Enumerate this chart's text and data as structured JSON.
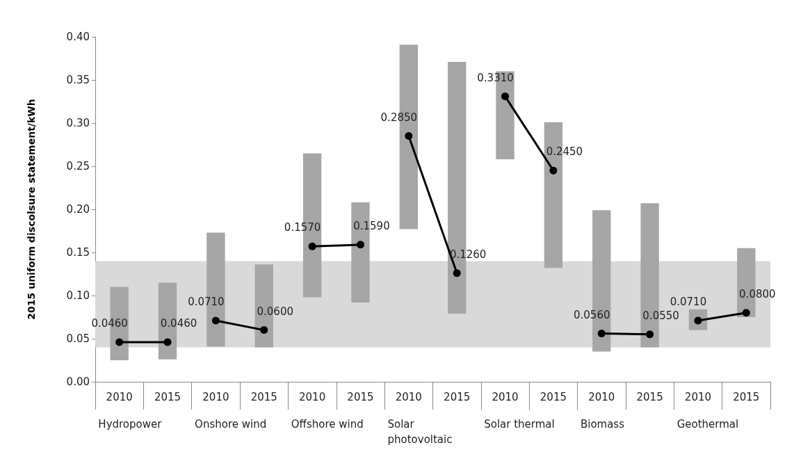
{
  "chart_data": {
    "type": "bar",
    "ylabel": "2015 uniform discolsure statement/kWh",
    "categories": [
      "2010",
      "2015",
      "2010",
      "2015",
      "2010",
      "2015",
      "2010",
      "2015",
      "2010",
      "2015",
      "2010",
      "2015",
      "2010",
      "2015"
    ],
    "annotations": [
      "Hydropower",
      "Onshore wind",
      "Offshore wind",
      "Solar photovoltaic",
      "Solar thermal",
      "Biomass",
      "Geothermal"
    ],
    "series": [
      {
        "color": "#a6a6a6",
        "base": [
          0.025,
          0.026,
          0.041,
          0.04,
          0.098,
          0.092,
          0.177,
          0.079,
          0.258,
          0.132,
          0.035,
          0.04,
          0.06,
          0.075
        ],
        "values": [
          0.085,
          0.089,
          0.132,
          0.096,
          0.167,
          0.116,
          0.214,
          0.292,
          0.102,
          0.169,
          0.164,
          0.167,
          0.024,
          0.08
        ]
      },
      {
        "type": "line",
        "color": "#000000",
        "values": [
          0.046,
          0.046,
          null,
          null,
          null,
          null,
          null,
          null,
          null,
          null,
          null,
          null,
          null,
          null
        ],
        "value_labels": [
          "0.0460",
          "0.0460",
          null,
          null,
          null,
          null,
          null,
          null,
          null,
          null,
          null,
          null,
          null,
          null
        ]
      },
      {
        "type": "line",
        "color": "#000000",
        "values": [
          null,
          null,
          0.071,
          0.06,
          null,
          null,
          null,
          null,
          null,
          null,
          null,
          null,
          null,
          null
        ],
        "value_labels": [
          null,
          null,
          "0.0710",
          "0.0600",
          null,
          null,
          null,
          null,
          null,
          null,
          null,
          null,
          null,
          null
        ]
      },
      {
        "type": "line",
        "color": "#000000",
        "values": [
          null,
          null,
          null,
          null,
          0.157,
          0.159,
          null,
          null,
          null,
          null,
          null,
          null,
          null,
          null
        ],
        "value_labels": [
          null,
          null,
          null,
          null,
          "0.1570",
          "0.1590",
          null,
          null,
          null,
          null,
          null,
          null,
          null,
          null
        ]
      },
      {
        "type": "line",
        "color": "#000000",
        "values": [
          null,
          null,
          null,
          null,
          null,
          null,
          0.285,
          0.126,
          null,
          null,
          null,
          null,
          null,
          null
        ],
        "value_labels": [
          null,
          null,
          null,
          null,
          null,
          null,
          "0.2850",
          "0.1260",
          null,
          null,
          null,
          null,
          null,
          null
        ]
      },
      {
        "type": "line",
        "color": "#000000",
        "values": [
          null,
          null,
          null,
          null,
          null,
          null,
          null,
          null,
          0.331,
          0.245,
          null,
          null,
          null,
          null
        ],
        "value_labels": [
          null,
          null,
          null,
          null,
          null,
          null,
          null,
          null,
          "0.3310",
          "0.2450",
          null,
          null,
          null,
          null
        ]
      },
      {
        "type": "line",
        "color": "#000000",
        "values": [
          null,
          null,
          null,
          null,
          null,
          null,
          null,
          null,
          null,
          null,
          0.056,
          0.055,
          null,
          null
        ],
        "value_labels": [
          null,
          null,
          null,
          null,
          null,
          null,
          null,
          null,
          null,
          null,
          "0.0560",
          "0.0550",
          null,
          null
        ]
      },
      {
        "type": "line",
        "color": "#000000",
        "values": [
          null,
          null,
          null,
          null,
          null,
          null,
          null,
          null,
          null,
          null,
          null,
          null,
          0.071,
          0.08
        ],
        "value_labels": [
          null,
          null,
          null,
          null,
          null,
          null,
          null,
          null,
          null,
          null,
          null,
          null,
          "0.0710",
          "0.0800"
        ]
      }
    ],
    "ylim": [
      0,
      0.4
    ],
    "yticks": [
      {
        "value": 0,
        "label": "0.00"
      },
      {
        "value": 0.05,
        "label": "0.05"
      },
      {
        "value": 0.1,
        "label": "0.10"
      },
      {
        "value": 0.15,
        "label": "0.15"
      },
      {
        "value": 0.2,
        "label": "0.20"
      },
      {
        "value": 0.25,
        "label": "0.25"
      },
      {
        "value": 0.3,
        "label": "0.30"
      },
      {
        "value": 0.35,
        "label": "0.35"
      },
      {
        "value": 0.4,
        "label": "0.40"
      }
    ],
    "bands": [
      {
        "axis": "y",
        "from": 0.04,
        "to": 0.14,
        "color": "#d9d9d9"
      }
    ],
    "marker": "circle",
    "line_style": "solid",
    "grid": false
  }
}
